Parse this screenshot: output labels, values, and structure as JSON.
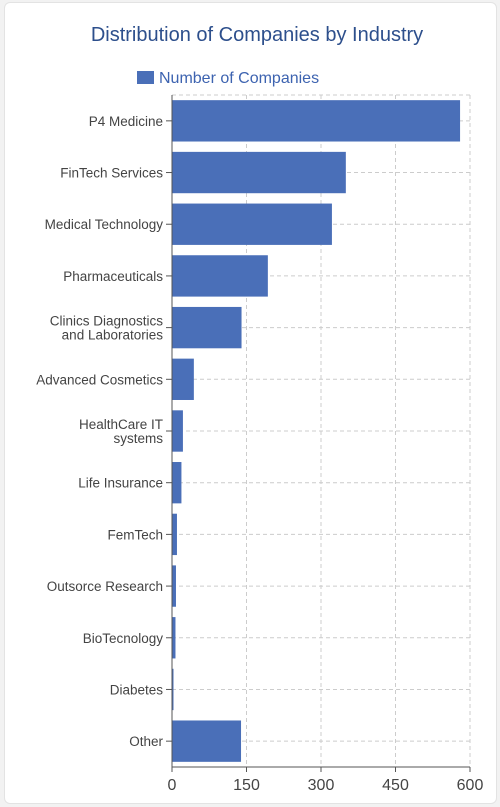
{
  "chart_data": {
    "type": "bar",
    "orientation": "horizontal",
    "title": "Distribution of Companies by Industry",
    "legend": {
      "position": "top",
      "entries": [
        "Number of Companies"
      ]
    },
    "categories": [
      "P4 Medicine",
      "FinTech Services",
      "Medical Technology",
      "Pharmaceuticals",
      "Clinics Diagnostics and Laboratories",
      "Advanced Cosmetics",
      "HealthCare IT systems",
      "Life Insurance",
      "FemTech",
      "Outsorce Research",
      "BioTecnology",
      "Diabetes",
      "Other"
    ],
    "series": [
      {
        "name": "Number of Companies",
        "color": "#4a6fb8",
        "values": [
          580,
          350,
          322,
          193,
          140,
          44,
          22,
          19,
          10,
          8,
          7,
          3,
          139
        ]
      }
    ],
    "xlim": [
      0,
      600
    ],
    "xticks": [
      0,
      150,
      300,
      450,
      600
    ],
    "grid": true,
    "colors": {
      "bar": "#4a6fb8",
      "title": "#2d4f8c",
      "legend_text": "#3d63b0",
      "axis_text": "#444444",
      "grid": "#cccccc"
    }
  }
}
